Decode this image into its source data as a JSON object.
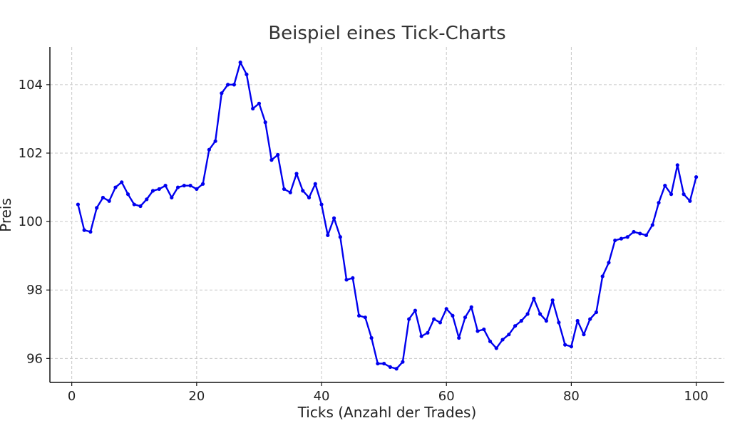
{
  "chart_data": {
    "type": "line",
    "title": "Beispiel eines Tick-Charts",
    "xlabel": "Ticks (Anzahl der Trades)",
    "ylabel": "Preis",
    "xlim": [
      -3.5,
      104.5
    ],
    "ylim": [
      95.3,
      105.1
    ],
    "xticks": [
      0,
      20,
      40,
      60,
      80,
      100
    ],
    "yticks": [
      96,
      98,
      100,
      102,
      104
    ],
    "grid": true,
    "line_color": "#0000ee",
    "series": [
      {
        "x": [
          1,
          2,
          3,
          4,
          5,
          6,
          7,
          8,
          9,
          10,
          11,
          12,
          13,
          14,
          15,
          16,
          17,
          18,
          19,
          20,
          21,
          22,
          23,
          24,
          25,
          26,
          27,
          28,
          29,
          30,
          31,
          32,
          33,
          34,
          35,
          36,
          37,
          38,
          39,
          40,
          41,
          42,
          43,
          44,
          45,
          46,
          47,
          48,
          49,
          50,
          51,
          52,
          53,
          54,
          55,
          56,
          57,
          58,
          59,
          60,
          61,
          62,
          63,
          64,
          65,
          66,
          67,
          68,
          69,
          70,
          71,
          72,
          73,
          74,
          75,
          76,
          77,
          78,
          79,
          80,
          81,
          82,
          83,
          84,
          85,
          86,
          87,
          88,
          89,
          90,
          91,
          92,
          93,
          94,
          95,
          96,
          97,
          98,
          99,
          100
        ],
        "values": [
          100.5,
          99.75,
          99.7,
          100.4,
          100.7,
          100.6,
          101.0,
          101.15,
          100.8,
          100.5,
          100.45,
          100.65,
          100.9,
          100.95,
          101.05,
          100.7,
          101.0,
          101.05,
          101.05,
          100.95,
          101.1,
          102.1,
          102.35,
          103.75,
          104.0,
          104.0,
          104.65,
          104.3,
          103.3,
          103.45,
          102.9,
          101.8,
          101.95,
          100.95,
          100.85,
          101.4,
          100.9,
          100.7,
          101.1,
          100.5,
          99.6,
          100.1,
          99.55,
          98.3,
          98.35,
          97.25,
          97.2,
          96.6,
          95.85,
          95.85,
          95.75,
          95.7,
          95.9,
          97.15,
          97.4,
          96.65,
          96.75,
          97.15,
          97.05,
          97.45,
          97.25,
          96.6,
          97.2,
          97.5,
          96.8,
          96.85,
          96.5,
          96.3,
          96.55,
          96.7,
          96.95,
          97.1,
          97.3,
          97.75,
          97.3,
          97.1,
          97.7,
          97.05,
          96.4,
          96.35,
          97.1,
          96.7,
          97.15,
          97.35,
          98.4,
          98.8,
          99.45,
          99.5,
          99.55,
          99.7,
          99.65,
          99.6,
          99.9,
          100.55,
          101.05,
          100.8,
          101.65,
          100.8,
          100.6,
          101.3
        ]
      }
    ]
  }
}
